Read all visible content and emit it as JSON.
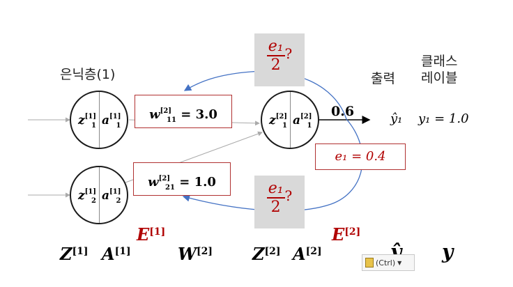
{
  "labels": {
    "hidden_layer": "은닉층(1)",
    "output": "출력",
    "class_label_line1": "클래스",
    "class_label_line2": "레이블"
  },
  "weights": {
    "w11": {
      "sym": "w",
      "sup": "[2]",
      "sub": "11",
      "value": "= 3.0"
    },
    "w21": {
      "sym": "w",
      "sup": "[2]",
      "sub": "21",
      "value": "= 1.0"
    }
  },
  "output_value": "0.6",
  "error": "e₁ = 0.4",
  "error_share": {
    "num": "e₁",
    "den": "2",
    "mark": "?"
  },
  "prediction": {
    "yhat": "ŷ₁",
    "y": "y₁ = 1.0"
  },
  "bottom_row": {
    "Z1": "Z",
    "A1": "A",
    "E1": "E",
    "W2": "W",
    "Z2": "Z",
    "A2": "A",
    "E2": "E",
    "yhat": "ŷ",
    "y": "y",
    "sup1": "[1]",
    "sup2": "[2]"
  },
  "nodes": {
    "h1": {
      "z": "z",
      "a": "a",
      "sup": "[1]",
      "sub": "1"
    },
    "h2": {
      "z": "z",
      "a": "a",
      "sup": "[1]",
      "sub": "2"
    },
    "o1": {
      "z": "z",
      "a": "a",
      "sup": "[2]",
      "sub": "1"
    }
  },
  "ctrl_label": "(Ctrl)",
  "colors": {
    "red": "#b00000",
    "blue": "#4472c4",
    "gray": "#d9d9d9"
  }
}
